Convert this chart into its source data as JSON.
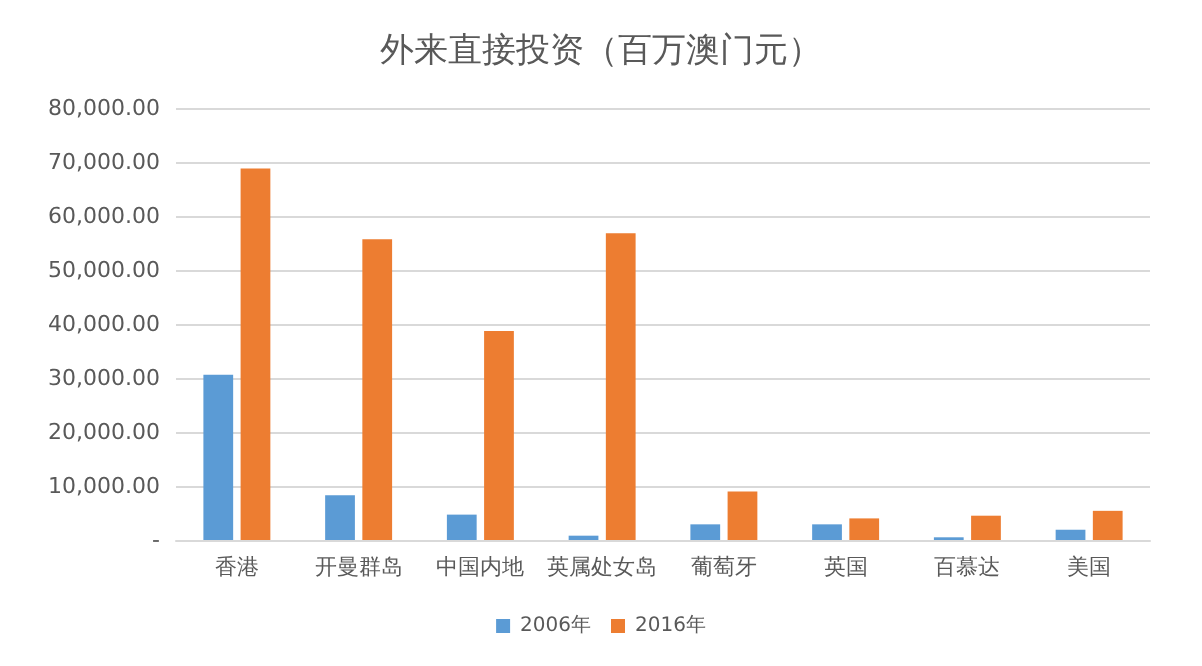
{
  "chart_data": {
    "type": "bar",
    "title": "外来直接投资（百万澳门元）",
    "categories": [
      "香港",
      "开曼群岛",
      "中国内地",
      "英属处女岛",
      "葡萄牙",
      "英国",
      "百慕达",
      "美国"
    ],
    "series": [
      {
        "name": "2006年",
        "color": "#5b9bd5",
        "values": [
          30600,
          8300,
          4700,
          800,
          2900,
          2900,
          500,
          1900
        ]
      },
      {
        "name": "2016年",
        "color": "#ed7d31",
        "values": [
          68800,
          55700,
          38700,
          56800,
          9000,
          4000,
          4500,
          5400
        ]
      }
    ],
    "ylim": [
      0,
      80000
    ],
    "yticks": [
      {
        "value": 0,
        "label": "-"
      },
      {
        "value": 10000,
        "label": "10,000.00"
      },
      {
        "value": 20000,
        "label": "20,000.00"
      },
      {
        "value": 30000,
        "label": "30,000.00"
      },
      {
        "value": 40000,
        "label": "40,000.00"
      },
      {
        "value": 50000,
        "label": "50,000.00"
      },
      {
        "value": 60000,
        "label": "60,000.00"
      },
      {
        "value": 70000,
        "label": "70,000.00"
      },
      {
        "value": 80000,
        "label": "80,000.00"
      }
    ],
    "grid": "y",
    "legend": "bottom"
  }
}
